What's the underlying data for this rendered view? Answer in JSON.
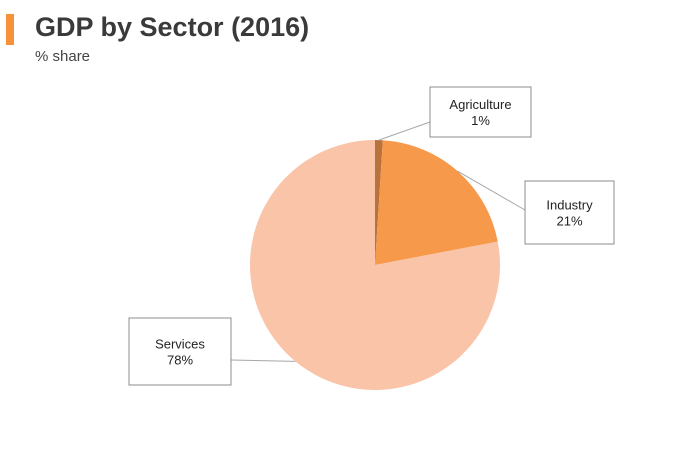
{
  "header": {
    "title": "GDP by Sector (2016)",
    "subtitle": "% share",
    "accent_color": "#f7923a"
  },
  "chart_data": {
    "type": "pie",
    "title": "GDP by Sector (2016)",
    "subtitle": "% share",
    "slices": [
      {
        "label": "Agriculture",
        "value": 1,
        "display": "1%",
        "color": "#b8733b"
      },
      {
        "label": "Industry",
        "value": 21,
        "display": "21%",
        "color": "#f7994a"
      },
      {
        "label": "Services",
        "value": 78,
        "display": "78%",
        "color": "#f9c4a8"
      }
    ],
    "start": "12 o'clock",
    "direction": "clockwise",
    "data_labels": "callouts"
  }
}
